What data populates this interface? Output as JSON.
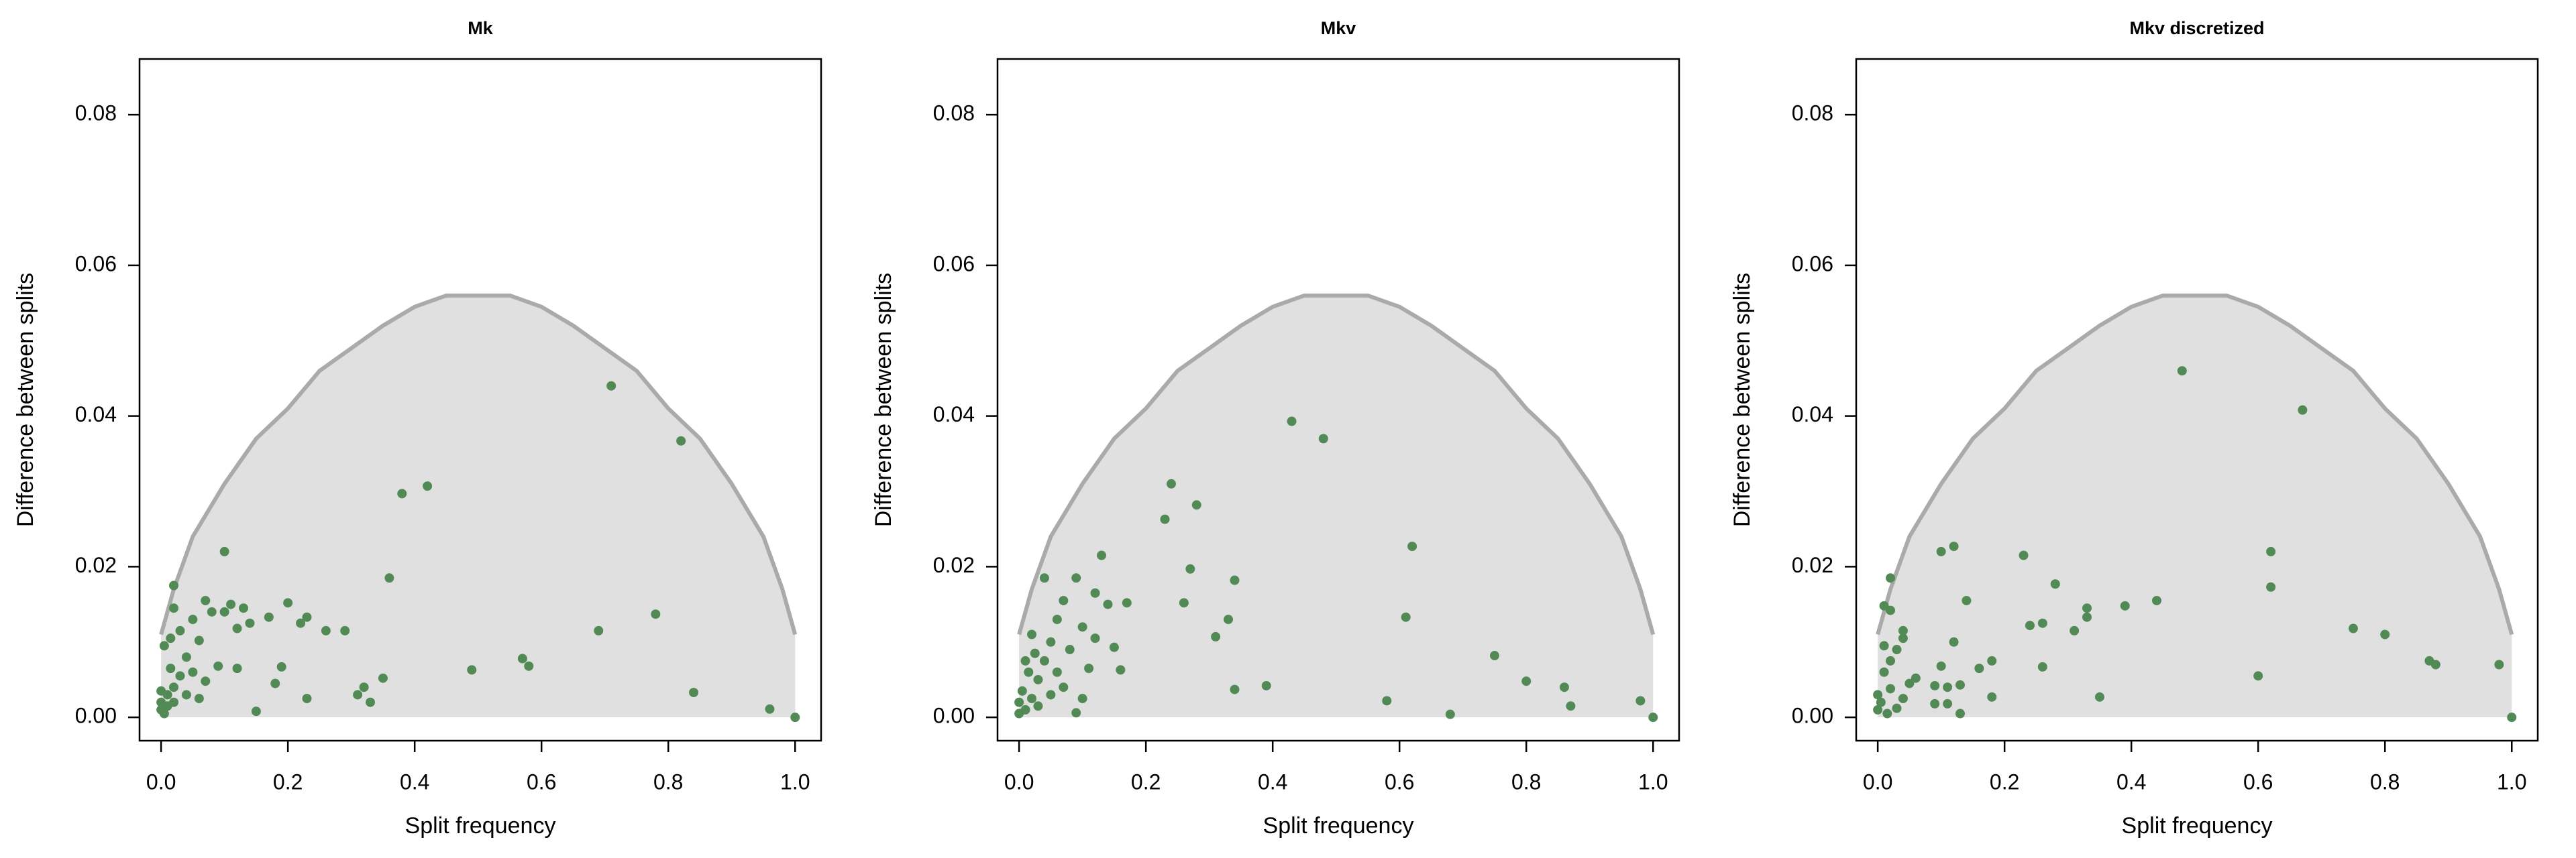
{
  "chart_data": [
    {
      "type": "scatter",
      "title": "Mk",
      "x_label": "Split frequency",
      "y_label": "Difference between splits",
      "color": "#528a55",
      "envelope_color": "#aaaaaa",
      "envelope_fill": "#e0e0e0",
      "envelope_x": [
        0,
        0.02,
        0.05,
        0.1,
        0.15,
        0.2,
        0.25,
        0.3,
        0.35,
        0.4,
        0.45,
        0.5,
        0.55,
        0.6,
        0.65,
        0.7,
        0.75,
        0.8,
        0.85,
        0.9,
        0.95,
        0.98,
        1
      ],
      "envelope_y": [
        0.011,
        0.017,
        0.024,
        0.031,
        0.037,
        0.041,
        0.046,
        0.049,
        0.052,
        0.0545,
        0.056,
        0.056,
        0.056,
        0.0545,
        0.052,
        0.049,
        0.046,
        0.041,
        0.037,
        0.031,
        0.024,
        0.017,
        0.011
      ],
      "x": [
        0.71,
        0.82,
        0.42,
        0.38,
        0.36,
        0.1,
        0.02,
        0.02,
        0.07,
        0.11,
        0.13,
        0.2,
        0.23,
        0.22,
        0.26,
        0.29,
        0.17,
        0.14,
        0.12,
        0.05,
        0.03,
        0.015,
        0.06,
        0.08,
        0.1,
        0.69,
        0.78,
        0.57,
        0.58,
        0.49,
        0.84,
        0.96,
        1.0,
        0.35,
        0.32,
        0.31,
        0.33,
        0.23,
        0.19,
        0.18,
        0.15,
        0.12,
        0.09,
        0.07,
        0.05,
        0.04,
        0.03,
        0.02,
        0.01,
        0.0,
        0.0,
        0.005,
        0.01,
        0.0,
        0.02,
        0.04,
        0.06,
        0.015,
        0.005
      ],
      "values": [
        0.044,
        0.0367,
        0.0307,
        0.0297,
        0.0185,
        0.022,
        0.0175,
        0.0145,
        0.0155,
        0.015,
        0.0145,
        0.0152,
        0.0133,
        0.0125,
        0.0115,
        0.0115,
        0.0133,
        0.0125,
        0.0118,
        0.013,
        0.0115,
        0.0105,
        0.0102,
        0.014,
        0.014,
        0.0115,
        0.0137,
        0.0078,
        0.0068,
        0.0063,
        0.0033,
        0.0011,
        0.0,
        0.0052,
        0.004,
        0.003,
        0.002,
        0.0025,
        0.0067,
        0.0045,
        0.0008,
        0.0065,
        0.0068,
        0.0048,
        0.006,
        0.008,
        0.0055,
        0.004,
        0.003,
        0.002,
        0.001,
        0.0005,
        0.0015,
        0.0035,
        0.002,
        0.003,
        0.0025,
        0.0065,
        0.0095
      ],
      "xlim": [
        -0.034,
        1.041
      ],
      "ylim": [
        -0.0031,
        0.0874
      ],
      "xticks": [
        {
          "value": 0,
          "label": "0.0"
        },
        {
          "value": 0.2,
          "label": "0.2"
        },
        {
          "value": 0.4,
          "label": "0.4"
        },
        {
          "value": 0.6,
          "label": "0.6"
        },
        {
          "value": 0.8,
          "label": "0.8"
        },
        {
          "value": 1,
          "label": "1.0"
        }
      ],
      "yticks": [
        {
          "value": 0,
          "label": "0.00"
        },
        {
          "value": 0.02,
          "label": "0.02"
        },
        {
          "value": 0.04,
          "label": "0.04"
        },
        {
          "value": 0.06,
          "label": "0.06"
        },
        {
          "value": 0.08,
          "label": "0.08"
        }
      ]
    },
    {
      "type": "scatter",
      "title": "Mkv",
      "x_label": "Split frequency",
      "y_label": "Difference between splits",
      "color": "#528a55",
      "envelope_color": "#aaaaaa",
      "envelope_fill": "#e0e0e0",
      "envelope_x": [
        0,
        0.02,
        0.05,
        0.1,
        0.15,
        0.2,
        0.25,
        0.3,
        0.35,
        0.4,
        0.45,
        0.5,
        0.55,
        0.6,
        0.65,
        0.7,
        0.75,
        0.8,
        0.85,
        0.9,
        0.95,
        0.98,
        1
      ],
      "envelope_y": [
        0.011,
        0.017,
        0.024,
        0.031,
        0.037,
        0.041,
        0.046,
        0.049,
        0.052,
        0.0545,
        0.056,
        0.056,
        0.056,
        0.0545,
        0.052,
        0.049,
        0.046,
        0.041,
        0.037,
        0.031,
        0.024,
        0.017,
        0.011
      ],
      "x": [
        0.43,
        0.48,
        0.24,
        0.28,
        0.23,
        0.27,
        0.34,
        0.62,
        0.13,
        0.09,
        0.04,
        0.12,
        0.1,
        0.14,
        0.17,
        0.26,
        0.61,
        0.33,
        0.31,
        0.15,
        0.12,
        0.07,
        0.06,
        0.02,
        0.05,
        0.08,
        0.16,
        0.11,
        0.75,
        0.8,
        0.86,
        0.87,
        0.98,
        1.0,
        0.68,
        0.58,
        0.39,
        0.34,
        0.09,
        0.1,
        0.07,
        0.06,
        0.04,
        0.03,
        0.02,
        0.01,
        0.0,
        0.005,
        0.015,
        0.0,
        0.03,
        0.05,
        0.01,
        0.025
      ],
      "values": [
        0.0393,
        0.037,
        0.031,
        0.0282,
        0.0263,
        0.0197,
        0.0182,
        0.0227,
        0.0215,
        0.0185,
        0.0185,
        0.0165,
        0.012,
        0.015,
        0.0152,
        0.0152,
        0.0133,
        0.013,
        0.0107,
        0.0093,
        0.0105,
        0.0155,
        0.013,
        0.011,
        0.01,
        0.009,
        0.0063,
        0.0065,
        0.0082,
        0.0048,
        0.004,
        0.0015,
        0.0022,
        0.0,
        0.0004,
        0.0022,
        0.0042,
        0.0037,
        0.0006,
        0.0025,
        0.004,
        0.006,
        0.0075,
        0.005,
        0.0025,
        0.001,
        0.002,
        0.0035,
        0.006,
        0.0005,
        0.0015,
        0.003,
        0.0075,
        0.0085
      ],
      "xlim": [
        -0.034,
        1.041
      ],
      "ylim": [
        -0.0031,
        0.0874
      ],
      "xticks": [
        {
          "value": 0,
          "label": "0.0"
        },
        {
          "value": 0.2,
          "label": "0.2"
        },
        {
          "value": 0.4,
          "label": "0.4"
        },
        {
          "value": 0.6,
          "label": "0.6"
        },
        {
          "value": 0.8,
          "label": "0.8"
        },
        {
          "value": 1,
          "label": "1.0"
        }
      ],
      "yticks": [
        {
          "value": 0,
          "label": "0.00"
        },
        {
          "value": 0.02,
          "label": "0.02"
        },
        {
          "value": 0.04,
          "label": "0.04"
        },
        {
          "value": 0.06,
          "label": "0.06"
        },
        {
          "value": 0.08,
          "label": "0.08"
        }
      ]
    },
    {
      "type": "scatter",
      "title": "Mkv discretized",
      "x_label": "Split frequency",
      "y_label": "Difference between splits",
      "color": "#528a55",
      "envelope_color": "#aaaaaa",
      "envelope_fill": "#e0e0e0",
      "envelope_x": [
        0,
        0.02,
        0.05,
        0.1,
        0.15,
        0.2,
        0.25,
        0.3,
        0.35,
        0.4,
        0.45,
        0.5,
        0.55,
        0.6,
        0.65,
        0.7,
        0.75,
        0.8,
        0.85,
        0.9,
        0.95,
        0.98,
        1
      ],
      "envelope_y": [
        0.011,
        0.017,
        0.024,
        0.031,
        0.037,
        0.041,
        0.046,
        0.049,
        0.052,
        0.0545,
        0.056,
        0.056,
        0.056,
        0.0545,
        0.052,
        0.049,
        0.046,
        0.041,
        0.037,
        0.031,
        0.024,
        0.017,
        0.011
      ],
      "x": [
        0.48,
        0.67,
        0.62,
        0.62,
        0.12,
        0.1,
        0.23,
        0.28,
        0.02,
        0.01,
        0.02,
        0.14,
        0.44,
        0.39,
        0.33,
        0.33,
        0.31,
        0.26,
        0.24,
        0.75,
        0.8,
        0.87,
        0.88,
        0.98,
        1.0,
        0.6,
        0.35,
        0.26,
        0.18,
        0.16,
        0.12,
        0.1,
        0.09,
        0.11,
        0.13,
        0.18,
        0.11,
        0.13,
        0.09,
        0.06,
        0.04,
        0.04,
        0.03,
        0.05,
        0.04,
        0.02,
        0.01,
        0.0,
        0.0,
        0.005,
        0.015,
        0.03,
        0.01,
        0.02
      ],
      "values": [
        0.046,
        0.0408,
        0.022,
        0.0173,
        0.0227,
        0.022,
        0.0215,
        0.0177,
        0.0185,
        0.0148,
        0.0142,
        0.0155,
        0.0155,
        0.0148,
        0.0145,
        0.0133,
        0.0115,
        0.0125,
        0.0122,
        0.0118,
        0.011,
        0.0075,
        0.007,
        0.007,
        0.0,
        0.0055,
        0.0027,
        0.0067,
        0.0075,
        0.0065,
        0.01,
        0.0068,
        0.0042,
        0.004,
        0.0043,
        0.0027,
        0.0018,
        0.0005,
        0.0018,
        0.0052,
        0.0115,
        0.0105,
        0.009,
        0.0045,
        0.0025,
        0.0038,
        0.006,
        0.003,
        0.001,
        0.002,
        0.0005,
        0.0012,
        0.0095,
        0.0075
      ],
      "xlim": [
        -0.034,
        1.041
      ],
      "ylim": [
        -0.0031,
        0.0874
      ],
      "xticks": [
        {
          "value": 0,
          "label": "0.0"
        },
        {
          "value": 0.2,
          "label": "0.2"
        },
        {
          "value": 0.4,
          "label": "0.4"
        },
        {
          "value": 0.6,
          "label": "0.6"
        },
        {
          "value": 0.8,
          "label": "0.8"
        },
        {
          "value": 1,
          "label": "1.0"
        }
      ],
      "yticks": [
        {
          "value": 0,
          "label": "0.00"
        },
        {
          "value": 0.02,
          "label": "0.02"
        },
        {
          "value": 0.04,
          "label": "0.04"
        },
        {
          "value": 0.06,
          "label": "0.06"
        },
        {
          "value": 0.08,
          "label": "0.08"
        }
      ]
    }
  ]
}
